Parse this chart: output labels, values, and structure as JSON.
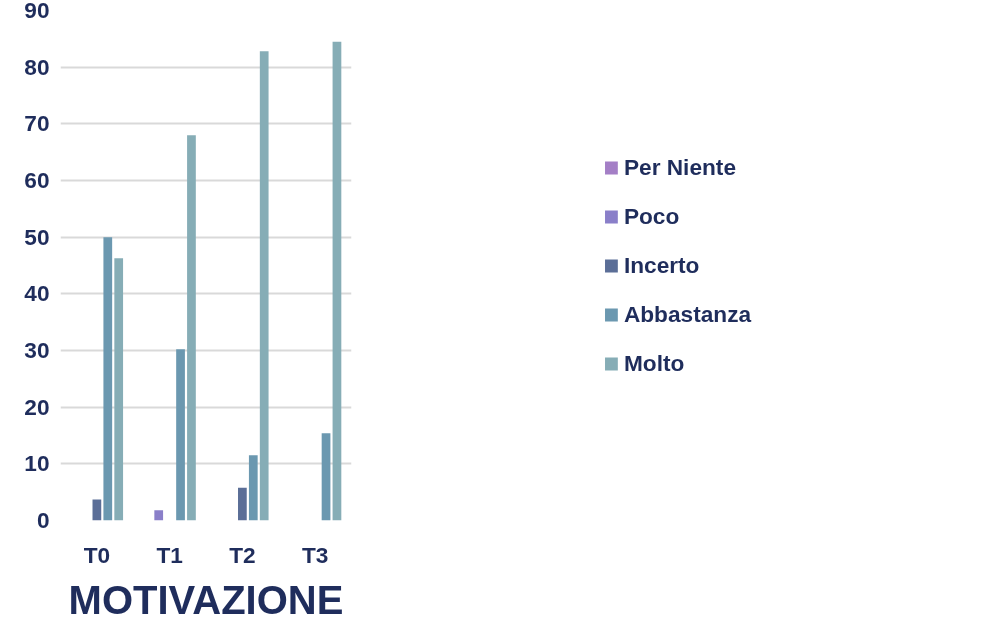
{
  "chart_data": {
    "type": "bar",
    "title": "MOTIVAZIONE",
    "categories": [
      "T0",
      "T1",
      "T2",
      "T3"
    ],
    "series": [
      {
        "name": "Per Niente",
        "color": "#a47fc6",
        "values": [
          0,
          0,
          0,
          0
        ]
      },
      {
        "name": "Poco",
        "color": "#8a7fc9",
        "values": [
          0,
          1.8,
          0,
          0
        ]
      },
      {
        "name": "Incerto",
        "color": "#5b6e97",
        "values": [
          3.7,
          0,
          5.8,
          0
        ]
      },
      {
        "name": "Abbastanza",
        "color": "#6b98b0",
        "values": [
          50,
          30.2,
          11.5,
          15.4
        ]
      },
      {
        "name": "Molto",
        "color": "#86adb6",
        "values": [
          46.3,
          68,
          82.8,
          84.5
        ]
      }
    ],
    "ylim": [
      0,
      90
    ],
    "yticks": [
      0,
      10,
      20,
      30,
      40,
      50,
      60,
      70,
      80,
      90
    ],
    "grid": "y",
    "legend": "right"
  }
}
